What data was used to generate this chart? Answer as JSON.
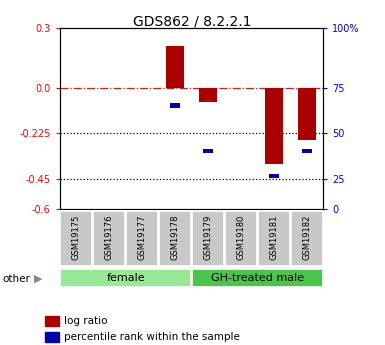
{
  "title": "GDS862 / 8.2.2.1",
  "samples": [
    "GSM19175",
    "GSM19176",
    "GSM19177",
    "GSM19178",
    "GSM19179",
    "GSM19180",
    "GSM19181",
    "GSM19182"
  ],
  "log_ratio": [
    0.0,
    0.0,
    0.0,
    0.21,
    -0.07,
    0.0,
    -0.38,
    -0.26
  ],
  "percentile_rank": [
    null,
    null,
    null,
    0.57,
    0.32,
    null,
    0.18,
    0.32
  ],
  "groups": [
    {
      "label": "female",
      "start": 0,
      "end": 4,
      "color": "#98E898"
    },
    {
      "label": "GH-treated male",
      "start": 4,
      "end": 8,
      "color": "#4CC44C"
    }
  ],
  "ylim": [
    -0.6,
    0.3
  ],
  "yticks_left": [
    0.3,
    0.0,
    -0.225,
    -0.45,
    -0.6
  ],
  "yticks_right_labels": [
    "100%",
    "75",
    "50",
    "25",
    "0"
  ],
  "yticks_right_pos": [
    0.3,
    0.0,
    -0.225,
    -0.45,
    -0.6
  ],
  "hlines_dotted": [
    -0.225,
    -0.45
  ],
  "zero_line": 0.0,
  "bar_color": "#AA0000",
  "percentile_color": "#0000AA",
  "bar_width": 0.55,
  "legend_labels": [
    "log ratio",
    "percentile rank within the sample"
  ],
  "other_label": "other"
}
